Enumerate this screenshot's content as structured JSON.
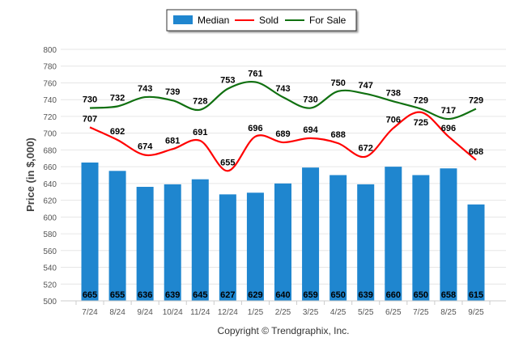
{
  "chart_data": {
    "type": "bar",
    "title": "",
    "xlabel": "",
    "ylabel": "Price (in $,000)",
    "ylim": [
      500,
      800
    ],
    "yticks": [
      500,
      520,
      540,
      560,
      580,
      600,
      620,
      640,
      660,
      680,
      700,
      720,
      740,
      760,
      780,
      800
    ],
    "grid": true,
    "legend_position": "top-center",
    "categories": [
      "7/24",
      "8/24",
      "9/24",
      "10/24",
      "11/24",
      "12/24",
      "1/25",
      "2/25",
      "3/25",
      "4/25",
      "5/25",
      "6/25",
      "7/25",
      "8/25",
      "9/25"
    ],
    "series": [
      {
        "name": "Median",
        "type": "bar",
        "color": "#1f86cf",
        "values": [
          665,
          655,
          636,
          639,
          645,
          627,
          629,
          640,
          659,
          650,
          639,
          660,
          650,
          658,
          615
        ]
      },
      {
        "name": "Sold",
        "type": "line",
        "color": "#ff0000",
        "values": [
          707,
          692,
          674,
          681,
          691,
          655,
          696,
          689,
          694,
          688,
          672,
          706,
          725,
          696,
          668
        ]
      },
      {
        "name": "For Sale",
        "type": "line",
        "color": "#107010",
        "values": [
          730,
          732,
          743,
          739,
          728,
          753,
          761,
          743,
          730,
          750,
          747,
          738,
          729,
          717,
          729
        ]
      }
    ]
  },
  "footer": {
    "copyright": "Copyright © Trendgraphix, Inc."
  }
}
